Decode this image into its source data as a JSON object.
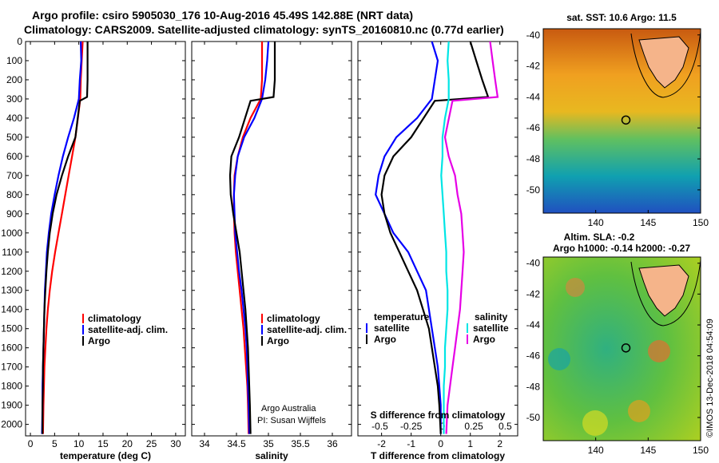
{
  "title_line1": "Argo profile: csiro 5905030_176 10-Aug-2016 45.49S 142.88E (NRT data)",
  "title_line2": "Climatology: CARS2009. Satellite-adjusted climatology: synTS_20160810.nc (0.77d earlier)",
  "credit_argo": "Argo Australia",
  "credit_pi": "PI: Susan Wijffels",
  "watermark": "©IMOS 13-Dec-2018 04:54:09",
  "colors": {
    "climatology": "#ff0000",
    "satellite": "#0000ff",
    "argo": "#000000",
    "sal_sat": "#00e5e5",
    "sal_argo": "#e600e6"
  },
  "chart_data": [
    {
      "type": "line",
      "xlabel": "temperature (deg C)",
      "ylabel": "",
      "xlim": [
        -1,
        32
      ],
      "ylim": [
        2060,
        0
      ],
      "xticks": [
        "0",
        "5",
        "10",
        "15",
        "20",
        "25",
        "30"
      ],
      "yticks": [
        "0",
        "100",
        "200",
        "300",
        "400",
        "500",
        "600",
        "700",
        "800",
        "900",
        "1000",
        "1100",
        "1200",
        "1300",
        "1400",
        "1500",
        "1600",
        "1700",
        "1800",
        "1900",
        "2000"
      ],
      "legend": [
        "climatology",
        "satellite-adj. clim.",
        "Argo"
      ],
      "legend_position": "lower-right",
      "series": [
        {
          "name": "climatology",
          "color": "#ff0000",
          "x": [
            10.8,
            10.6,
            10.4,
            10.3,
            9.8,
            9.3,
            8.6,
            7.9,
            7.2,
            6.5,
            5.8,
            5.1,
            4.5,
            4.0,
            3.6,
            3.3,
            3.1,
            2.9,
            2.8,
            2.7,
            2.6
          ],
          "y": [
            0,
            100,
            200,
            300,
            400,
            500,
            600,
            700,
            800,
            900,
            1000,
            1100,
            1200,
            1300,
            1400,
            1500,
            1600,
            1700,
            1800,
            1900,
            2050
          ]
        },
        {
          "name": "satellite-adj. clim.",
          "color": "#0000ff",
          "x": [
            10.4,
            10.5,
            10.2,
            10.0,
            9.0,
            7.8,
            6.7,
            5.8,
            5.0,
            4.3,
            3.8,
            3.4,
            3.2,
            3.0,
            2.9,
            2.8,
            2.7,
            2.6,
            2.5,
            2.5,
            2.4
          ],
          "y": [
            0,
            100,
            200,
            300,
            400,
            500,
            600,
            700,
            800,
            900,
            1000,
            1100,
            1200,
            1300,
            1400,
            1500,
            1600,
            1700,
            1800,
            1900,
            2050
          ]
        },
        {
          "name": "Argo",
          "color": "#000000",
          "x": [
            11.8,
            11.8,
            11.8,
            11.7,
            10.2,
            9.3,
            7.8,
            6.5,
            5.4,
            4.6,
            4.0,
            3.6,
            3.3,
            3.1,
            2.9,
            2.8,
            2.7,
            2.6,
            2.6,
            2.5,
            2.5
          ],
          "y": [
            0,
            100,
            200,
            290,
            310,
            500,
            600,
            700,
            800,
            900,
            1000,
            1100,
            1200,
            1300,
            1400,
            1500,
            1600,
            1700,
            1800,
            1900,
            2050
          ]
        }
      ]
    },
    {
      "type": "line",
      "xlabel": "salinity",
      "xlim": [
        33.8,
        36.3
      ],
      "ylim": [
        2060,
        0
      ],
      "xticks": [
        "34",
        "34.5",
        "35",
        "35.5",
        "36"
      ],
      "legend": [
        "climatology",
        "satellite-adj. clim.",
        "Argo"
      ],
      "legend_position": "lower-right",
      "series": [
        {
          "name": "climatology",
          "color": "#ff0000",
          "x": [
            34.9,
            34.9,
            34.9,
            34.88,
            34.72,
            34.6,
            34.52,
            34.47,
            34.46,
            34.46,
            34.47,
            34.49,
            34.52,
            34.55,
            34.58,
            34.61,
            34.63,
            34.65,
            34.67,
            34.68,
            34.69
          ],
          "y": [
            0,
            100,
            200,
            300,
            400,
            500,
            600,
            700,
            800,
            900,
            1000,
            1100,
            1200,
            1300,
            1400,
            1500,
            1600,
            1700,
            1800,
            1900,
            2050
          ]
        },
        {
          "name": "satellite-adj. clim.",
          "color": "#0000ff",
          "x": [
            35.0,
            34.98,
            34.95,
            34.9,
            34.78,
            34.62,
            34.52,
            34.48,
            34.46,
            34.47,
            34.48,
            34.51,
            34.54,
            34.58,
            34.61,
            34.64,
            34.66,
            34.67,
            34.68,
            34.69,
            34.7
          ],
          "y": [
            0,
            100,
            200,
            300,
            400,
            500,
            600,
            700,
            800,
            900,
            1000,
            1100,
            1200,
            1300,
            1400,
            1500,
            1600,
            1700,
            1800,
            1900,
            2050
          ]
        },
        {
          "name": "Argo",
          "color": "#000000",
          "x": [
            35.1,
            35.1,
            35.1,
            35.08,
            34.72,
            34.54,
            34.42,
            34.4,
            34.41,
            34.45,
            34.5,
            34.55,
            34.58,
            34.61,
            34.64,
            34.66,
            34.68,
            34.69,
            34.7,
            34.71,
            34.72
          ],
          "y": [
            0,
            100,
            200,
            290,
            310,
            500,
            600,
            700,
            800,
            900,
            1000,
            1100,
            1200,
            1300,
            1400,
            1500,
            1600,
            1700,
            1800,
            1900,
            2050
          ]
        }
      ]
    },
    {
      "type": "line",
      "xlabel": "T difference from climatology",
      "secondary_xlabel": "S difference from climatology",
      "xlim": [
        -2.8,
        2.6
      ],
      "ylim": [
        2060,
        0
      ],
      "xticks": [
        "-2",
        "-1",
        "0",
        "1",
        "2"
      ],
      "secondary_xticks": [
        "-0.5",
        "-0.25",
        "0",
        "0.25",
        "0.5"
      ],
      "legend_groups": {
        "temperature": [
          "satellite",
          "Argo"
        ],
        "salinity": [
          "satellite",
          "Argo"
        ]
      },
      "series": [
        {
          "name": "satellite",
          "group": "temperature",
          "color": "#0000ff",
          "x": [
            -0.3,
            -0.1,
            -0.2,
            -0.3,
            -0.8,
            -1.5,
            -1.9,
            -2.1,
            -2.2,
            -1.9,
            -1.6,
            -1.1,
            -0.8,
            -0.5,
            -0.4,
            -0.3,
            -0.2,
            -0.1,
            -0.05,
            0,
            0
          ],
          "y": [
            0,
            100,
            200,
            300,
            400,
            500,
            600,
            700,
            800,
            900,
            1000,
            1100,
            1200,
            1300,
            1400,
            1500,
            1600,
            1700,
            1800,
            1900,
            2050
          ]
        },
        {
          "name": "Argo",
          "group": "temperature",
          "color": "#000000",
          "x": [
            1.0,
            1.2,
            1.4,
            1.6,
            -0.2,
            -1.0,
            -1.6,
            -1.9,
            -2.0,
            -1.9,
            -1.7,
            -1.4,
            -1.1,
            -0.8,
            -0.6,
            -0.4,
            -0.3,
            -0.2,
            -0.1,
            -0.05,
            0
          ],
          "y": [
            0,
            100,
            200,
            290,
            310,
            500,
            600,
            700,
            800,
            900,
            1000,
            1100,
            1200,
            1300,
            1400,
            1500,
            1600,
            1700,
            1800,
            1900,
            2050
          ]
        },
        {
          "name": "satellite",
          "group": "salinity",
          "color": "#00e5e5",
          "x": [
            0.05,
            0.04,
            0.05,
            0.05,
            0.02,
            0.0,
            0.0,
            -0.01,
            0.0,
            0.01,
            0.02,
            0.03,
            0.03,
            0.04,
            0.04,
            0.03,
            0.02,
            0.02,
            0.01,
            0.01,
            0.01
          ],
          "y": [
            0,
            100,
            200,
            300,
            400,
            500,
            600,
            700,
            800,
            900,
            1000,
            1100,
            1200,
            1300,
            1400,
            1500,
            1600,
            1700,
            1800,
            1900,
            2050
          ]
        },
        {
          "name": "Argo",
          "group": "salinity",
          "color": "#e600e6",
          "x": [
            0.38,
            0.4,
            0.42,
            0.44,
            0.08,
            0.02,
            0.05,
            0.1,
            0.12,
            0.15,
            0.16,
            0.17,
            0.16,
            0.15,
            0.14,
            0.12,
            0.1,
            0.08,
            0.06,
            0.04,
            0.03
          ],
          "y": [
            0,
            100,
            200,
            290,
            310,
            500,
            600,
            700,
            800,
            900,
            1000,
            1100,
            1200,
            1300,
            1400,
            1500,
            1600,
            1700,
            1800,
            1900,
            2050
          ]
        }
      ]
    },
    {
      "type": "heatmap",
      "title": "sat. SST: 10.6 Argo: 11.5",
      "xlim": [
        135,
        150
      ],
      "ylim": [
        -51.5,
        -39.6
      ],
      "xticks": [
        "140",
        "145",
        "150"
      ],
      "yticks": [
        "-40",
        "-42",
        "-44",
        "-46",
        "-48",
        "-50"
      ],
      "marker": {
        "lon": 142.88,
        "lat": -45.49
      }
    },
    {
      "type": "heatmap",
      "title": "Altim. SLA: -0.2",
      "subtitle": "Argo h1000: -0.14 h2000: -0.27",
      "xlim": [
        135,
        150
      ],
      "ylim": [
        -51.5,
        -39.6
      ],
      "xticks": [
        "140",
        "145",
        "150"
      ],
      "yticks": [
        "-40",
        "-42",
        "-44",
        "-46",
        "-48",
        "-50"
      ],
      "marker": {
        "lon": 142.88,
        "lat": -45.49
      }
    }
  ]
}
